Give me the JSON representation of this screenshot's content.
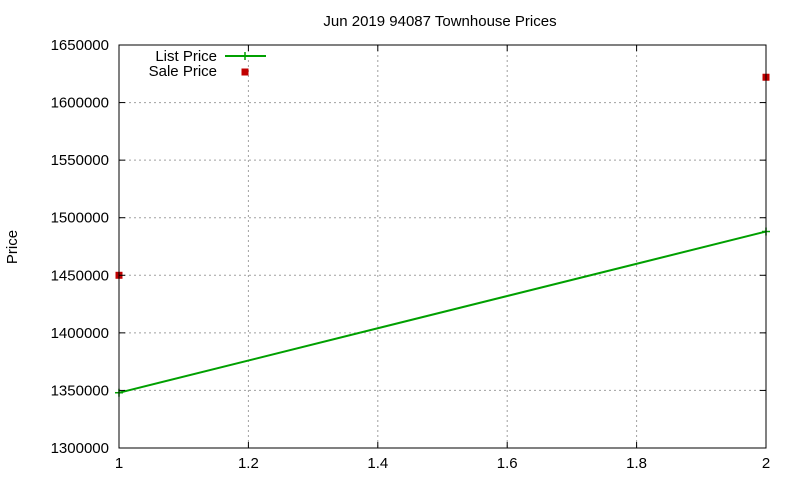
{
  "chart_data": {
    "type": "line",
    "title": "Jun 2019 94087 Townhouse Prices",
    "xlabel": "",
    "ylabel": "Price",
    "xlim": [
      1,
      2
    ],
    "ylim": [
      1300000,
      1650000
    ],
    "x_ticks": [
      1,
      1.2,
      1.4,
      1.6,
      1.8,
      2
    ],
    "x_tick_labels": [
      "1",
      "1.2",
      "1.4",
      "1.6",
      "1.8",
      "2"
    ],
    "y_ticks": [
      1300000,
      1350000,
      1400000,
      1450000,
      1500000,
      1550000,
      1600000,
      1650000
    ],
    "y_tick_labels": [
      "1300000",
      "1350000",
      "1400000",
      "1450000",
      "1500000",
      "1550000",
      "1600000",
      "1650000"
    ],
    "grid": true,
    "legend_position": "top-left",
    "series": [
      {
        "name": "List Price",
        "style": "line+cross",
        "color": "#00a000",
        "x": [
          1,
          2
        ],
        "values": [
          1348000,
          1488000
        ]
      },
      {
        "name": "Sale Price",
        "style": "square-points",
        "color": "#c00000",
        "x": [
          1,
          2
        ],
        "values": [
          1450000,
          1622000
        ]
      }
    ]
  }
}
